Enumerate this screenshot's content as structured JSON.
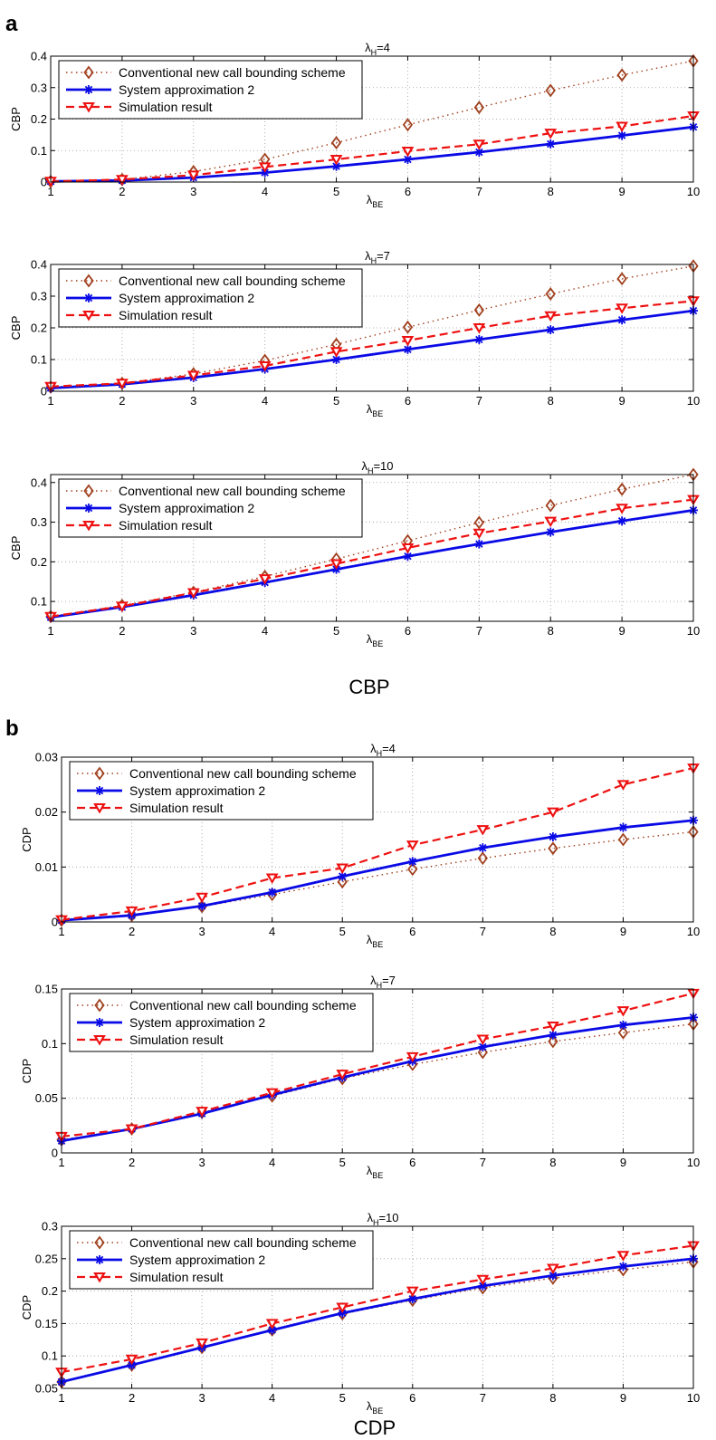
{
  "panels": [
    {
      "letter": "a",
      "caption": "CBP"
    },
    {
      "letter": "b",
      "caption": "CDP"
    }
  ],
  "colors": {
    "conventional": "#a0401e",
    "approximation": "#0a0ae6",
    "simulation": "#ee1111",
    "grid": "#9a9a9a"
  },
  "chart_data": [
    {
      "type": "line",
      "panel": "a",
      "title": "λH=4",
      "title_main": "λ",
      "title_sub": "H",
      "title_rest": "=4",
      "xlabel_main": "λ",
      "xlabel_sub": "BE",
      "ylabel": "CBP",
      "xlim": [
        1,
        10
      ],
      "ylim": [
        0,
        0.4
      ],
      "xticks": [
        1,
        2,
        3,
        4,
        5,
        6,
        7,
        8,
        9,
        10
      ],
      "xtick_labels": [
        "1",
        "2",
        "3",
        "4",
        "5",
        "6",
        "7",
        "8",
        "9",
        "10"
      ],
      "yticks": [
        0,
        0.1,
        0.2,
        0.3,
        0.4
      ],
      "ytick_labels": [
        "0",
        "0.1",
        "0.2",
        "0.3",
        "0.4"
      ],
      "grid": true,
      "legend_position": "top-left",
      "x": [
        1,
        2,
        3,
        4,
        5,
        6,
        7,
        8,
        9,
        10
      ],
      "series": [
        {
          "name": "Conventional new call bounding scheme",
          "values": [
            0.002,
            0.008,
            0.033,
            0.072,
            0.125,
            0.182,
            0.237,
            0.291,
            0.34,
            0.385
          ]
        },
        {
          "name": "System approximation 2",
          "values": [
            0.002,
            0.005,
            0.014,
            0.03,
            0.05,
            0.072,
            0.095,
            0.121,
            0.148,
            0.175
          ]
        },
        {
          "name": "Simulation result",
          "values": [
            0.002,
            0.008,
            0.022,
            0.048,
            0.072,
            0.098,
            0.12,
            0.155,
            0.177,
            0.21
          ]
        }
      ]
    },
    {
      "type": "line",
      "panel": "a",
      "title": "λH=7",
      "title_main": "λ",
      "title_sub": "H",
      "title_rest": "=7",
      "xlabel_main": "λ",
      "xlabel_sub": "BE",
      "ylabel": "CBP",
      "xlim": [
        1,
        10
      ],
      "ylim": [
        0,
        0.4
      ],
      "xticks": [
        1,
        2,
        3,
        4,
        5,
        6,
        7,
        8,
        9,
        10
      ],
      "xtick_labels": [
        "1",
        "2",
        "3",
        "4",
        "5",
        "6",
        "7",
        "8",
        "9",
        "10"
      ],
      "yticks": [
        0,
        0.1,
        0.2,
        0.3,
        0.4
      ],
      "ytick_labels": [
        "0",
        "0.1",
        "0.2",
        "0.3",
        "0.4"
      ],
      "grid": true,
      "legend_position": "top-left",
      "x": [
        1,
        2,
        3,
        4,
        5,
        6,
        7,
        8,
        9,
        10
      ],
      "series": [
        {
          "name": "Conventional new call bounding scheme",
          "values": [
            0.013,
            0.025,
            0.055,
            0.097,
            0.148,
            0.202,
            0.256,
            0.307,
            0.355,
            0.395
          ]
        },
        {
          "name": "System approximation 2",
          "values": [
            0.01,
            0.022,
            0.043,
            0.07,
            0.1,
            0.132,
            0.163,
            0.194,
            0.225,
            0.254
          ]
        },
        {
          "name": "Simulation result",
          "values": [
            0.015,
            0.025,
            0.05,
            0.08,
            0.125,
            0.16,
            0.2,
            0.238,
            0.262,
            0.285
          ]
        }
      ]
    },
    {
      "type": "line",
      "panel": "a",
      "title": "λH=10",
      "title_main": "λ",
      "title_sub": "H",
      "title_rest": "=10",
      "xlabel_main": "λ",
      "xlabel_sub": "BE",
      "ylabel": "CBP",
      "xlim": [
        1,
        10
      ],
      "ylim": [
        0.05,
        0.42
      ],
      "xticks": [
        1,
        2,
        3,
        4,
        5,
        6,
        7,
        8,
        9,
        10
      ],
      "xtick_labels": [
        "1",
        "2",
        "3",
        "4",
        "5",
        "6",
        "7",
        "8",
        "9",
        "10"
      ],
      "yticks": [
        0.1,
        0.2,
        0.3,
        0.4
      ],
      "ytick_labels": [
        "0.1",
        "0.2",
        "0.3",
        "0.4"
      ],
      "grid": true,
      "legend_position": "top-left",
      "x": [
        1,
        2,
        3,
        4,
        5,
        6,
        7,
        8,
        9,
        10
      ],
      "series": [
        {
          "name": "Conventional new call bounding scheme",
          "values": [
            0.062,
            0.09,
            0.123,
            0.163,
            0.207,
            0.253,
            0.299,
            0.342,
            0.383,
            0.42
          ]
        },
        {
          "name": "System approximation 2",
          "values": [
            0.06,
            0.086,
            0.116,
            0.148,
            0.181,
            0.214,
            0.245,
            0.275,
            0.303,
            0.33
          ]
        },
        {
          "name": "Simulation result",
          "values": [
            0.062,
            0.088,
            0.122,
            0.157,
            0.195,
            0.235,
            0.272,
            0.302,
            0.335,
            0.357
          ]
        }
      ]
    },
    {
      "type": "line",
      "panel": "b",
      "title": "λH=4",
      "title_main": "λ",
      "title_sub": "H",
      "title_rest": "=4",
      "xlabel_main": "λ",
      "xlabel_sub": "BE",
      "ylabel": "CDP",
      "xlim": [
        1,
        10
      ],
      "ylim": [
        0,
        0.03
      ],
      "xticks": [
        1,
        2,
        3,
        4,
        5,
        6,
        7,
        8,
        9,
        10
      ],
      "xtick_labels": [
        "1",
        "2",
        "3",
        "4",
        "5",
        "6",
        "7",
        "8",
        "9",
        "10"
      ],
      "yticks": [
        0,
        0.01,
        0.02,
        0.03
      ],
      "ytick_labels": [
        "0",
        "0.01",
        "0.02",
        "0.03"
      ],
      "grid": true,
      "legend_position": "top-left",
      "x": [
        1,
        2,
        3,
        4,
        5,
        6,
        7,
        8,
        9,
        10
      ],
      "series": [
        {
          "name": "Conventional new call bounding scheme",
          "values": [
            0.0003,
            0.0012,
            0.0028,
            0.005,
            0.0073,
            0.0096,
            0.0116,
            0.0134,
            0.015,
            0.0164
          ]
        },
        {
          "name": "System approximation 2",
          "values": [
            0.0003,
            0.0012,
            0.0029,
            0.0054,
            0.0083,
            0.011,
            0.0135,
            0.0155,
            0.0172,
            0.0185
          ]
        },
        {
          "name": "Simulation result",
          "values": [
            0.0004,
            0.002,
            0.0045,
            0.008,
            0.0098,
            0.014,
            0.0168,
            0.02,
            0.025,
            0.028
          ]
        }
      ]
    },
    {
      "type": "line",
      "panel": "b",
      "title": "λH=7",
      "title_main": "λ",
      "title_sub": "H",
      "title_rest": "=7",
      "xlabel_main": "λ",
      "xlabel_sub": "BE",
      "ylabel": "CDP",
      "xlim": [
        1,
        10
      ],
      "ylim": [
        0,
        0.15
      ],
      "xticks": [
        1,
        2,
        3,
        4,
        5,
        6,
        7,
        8,
        9,
        10
      ],
      "xtick_labels": [
        "1",
        "2",
        "3",
        "4",
        "5",
        "6",
        "7",
        "8",
        "9",
        "10"
      ],
      "yticks": [
        0,
        0.05,
        0.1,
        0.15
      ],
      "ytick_labels": [
        "0",
        "0.05",
        "0.1",
        "0.15"
      ],
      "grid": true,
      "legend_position": "top-left",
      "x": [
        1,
        2,
        3,
        4,
        5,
        6,
        7,
        8,
        9,
        10
      ],
      "series": [
        {
          "name": "Conventional new call bounding scheme",
          "values": [
            0.012,
            0.022,
            0.037,
            0.052,
            0.068,
            0.081,
            0.092,
            0.102,
            0.11,
            0.118
          ]
        },
        {
          "name": "System approximation 2",
          "values": [
            0.011,
            0.022,
            0.036,
            0.053,
            0.069,
            0.084,
            0.097,
            0.108,
            0.117,
            0.124
          ]
        },
        {
          "name": "Simulation result",
          "values": [
            0.015,
            0.022,
            0.038,
            0.055,
            0.072,
            0.088,
            0.104,
            0.116,
            0.13,
            0.146
          ]
        }
      ]
    },
    {
      "type": "line",
      "panel": "b",
      "title": "λH=10",
      "title_main": "λ",
      "title_sub": "H",
      "title_rest": "=10",
      "xlabel_main": "λ",
      "xlabel_sub": "BE",
      "ylabel": "CDP",
      "xlim": [
        1,
        10
      ],
      "ylim": [
        0.05,
        0.3
      ],
      "xticks": [
        1,
        2,
        3,
        4,
        5,
        6,
        7,
        8,
        9,
        10
      ],
      "xtick_labels": [
        "1",
        "2",
        "3",
        "4",
        "5",
        "6",
        "7",
        "8",
        "9",
        "10"
      ],
      "yticks": [
        0.05,
        0.1,
        0.15,
        0.2,
        0.25,
        0.3
      ],
      "ytick_labels": [
        "0.05",
        "0.1",
        "0.15",
        "0.2",
        "0.25",
        "0.3"
      ],
      "grid": true,
      "legend_position": "top-left",
      "x": [
        1,
        2,
        3,
        4,
        5,
        6,
        7,
        8,
        9,
        10
      ],
      "series": [
        {
          "name": "Conventional new call bounding scheme",
          "values": [
            0.06,
            0.086,
            0.113,
            0.14,
            0.165,
            0.186,
            0.205,
            0.22,
            0.233,
            0.245
          ]
        },
        {
          "name": "System approximation 2",
          "values": [
            0.06,
            0.086,
            0.113,
            0.14,
            0.166,
            0.188,
            0.208,
            0.224,
            0.238,
            0.25
          ]
        },
        {
          "name": "Simulation result",
          "values": [
            0.075,
            0.095,
            0.12,
            0.15,
            0.175,
            0.2,
            0.218,
            0.235,
            0.255,
            0.27
          ]
        }
      ]
    }
  ]
}
